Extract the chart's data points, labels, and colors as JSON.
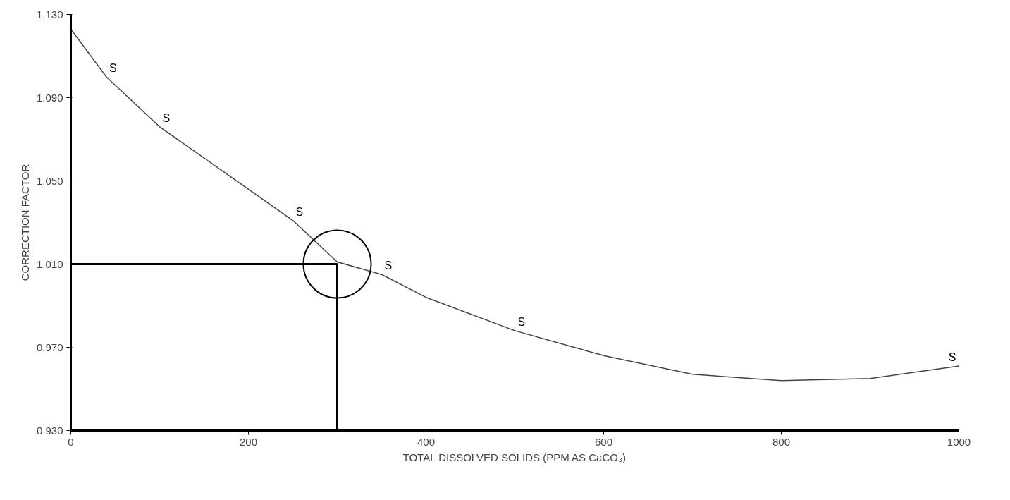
{
  "chart_data": {
    "type": "line",
    "xlabel": "TOTAL DISSOLVED SOLIDS (PPM AS CaCO₃)",
    "ylabel": "CORRECTION FACTOR",
    "xlim": [
      0,
      1000
    ],
    "ylim": [
      0.93,
      1.13
    ],
    "xticks": [
      0,
      200,
      400,
      600,
      800,
      1000
    ],
    "yticks": [
      {
        "value": 0.93,
        "label": "0.930"
      },
      {
        "value": 0.97,
        "label": "0.970"
      },
      {
        "value": 1.01,
        "label": "1.010"
      },
      {
        "value": 1.05,
        "label": "1.050"
      },
      {
        "value": 1.09,
        "label": "1.090"
      },
      {
        "value": 1.13,
        "label": "1.130"
      }
    ],
    "grid": false,
    "marker": "none",
    "line_style": "solid",
    "series": [
      {
        "color": "#444444",
        "x": [
          0,
          40,
          100,
          250,
          300,
          350,
          400,
          500,
          600,
          700,
          800,
          900,
          1000
        ],
        "values": [
          1.123,
          1.1,
          1.076,
          1.031,
          1.011,
          1.005,
          0.994,
          0.978,
          0.966,
          0.957,
          0.954,
          0.955,
          0.961
        ]
      },
      {
        "color": "#000000",
        "x": [
          0,
          300,
          300
        ],
        "values": [
          1.01,
          1.01,
          0.93
        ]
      }
    ],
    "annotations": [
      {
        "text": "S",
        "x": 40,
        "y": 1.1
      },
      {
        "text": "S",
        "x": 100,
        "y": 1.076
      },
      {
        "text": "S",
        "x": 250,
        "y": 1.031
      },
      {
        "text": "S",
        "x": 350,
        "y": 1.005
      },
      {
        "text": "S",
        "x": 500,
        "y": 0.978
      },
      {
        "text": "S",
        "x": 1000,
        "y": 0.961
      }
    ]
  }
}
